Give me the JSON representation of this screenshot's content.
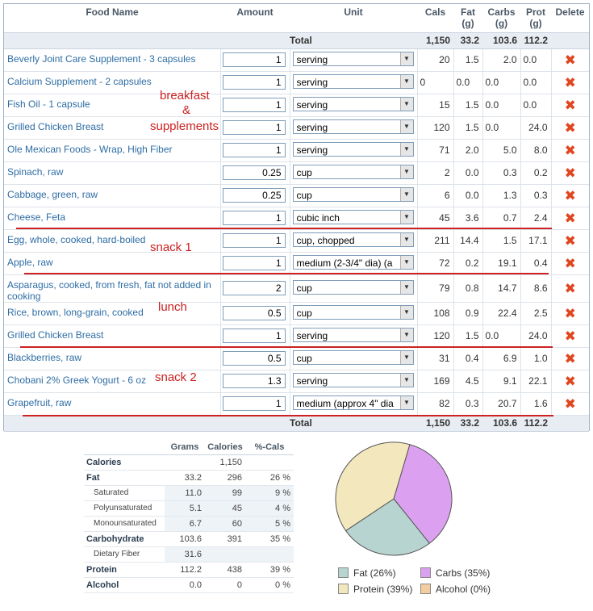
{
  "columns": [
    "Food Name",
    "Amount",
    "Unit",
    "Cals",
    "Fat (g)",
    "Carbs (g)",
    "Prot (g)",
    "Delete"
  ],
  "total": {
    "label": "Total",
    "cals": "1,150",
    "fat": "33.2",
    "carbs": "103.6",
    "prot": "112.2"
  },
  "foods": [
    {
      "name": "Beverly Joint Care Supplement - 3 capsules",
      "amount": "1",
      "unit": "serving",
      "cals": "20",
      "fat": "1.5",
      "carbs": "2.0",
      "prot": "0.0"
    },
    {
      "name": "Calcium Supplement - 2 capsules",
      "amount": "1",
      "unit": "serving",
      "cals": "0",
      "fat": "0.0",
      "carbs": "0.0",
      "prot": "0.0"
    },
    {
      "name": "Fish Oil - 1 capsule",
      "amount": "1",
      "unit": "serving",
      "cals": "15",
      "fat": "1.5",
      "carbs": "0.0",
      "prot": "0.0"
    },
    {
      "name": "Grilled Chicken Breast",
      "amount": "1",
      "unit": "serving",
      "cals": "120",
      "fat": "1.5",
      "carbs": "0.0",
      "prot": "24.0"
    },
    {
      "name": "Ole Mexican Foods - Wrap, High Fiber",
      "amount": "1",
      "unit": "serving",
      "cals": "71",
      "fat": "2.0",
      "carbs": "5.0",
      "prot": "8.0"
    },
    {
      "name": "Spinach, raw",
      "amount": "0.25",
      "unit": "cup",
      "cals": "2",
      "fat": "0.0",
      "carbs": "0.3",
      "prot": "0.2"
    },
    {
      "name": "Cabbage, green, raw",
      "amount": "0.25",
      "unit": "cup",
      "cals": "6",
      "fat": "0.0",
      "carbs": "1.3",
      "prot": "0.3"
    },
    {
      "name": "Cheese, Feta",
      "amount": "1",
      "unit": "cubic inch",
      "cals": "45",
      "fat": "3.6",
      "carbs": "0.7",
      "prot": "2.4"
    },
    {
      "name": "Egg, whole, cooked, hard-boiled",
      "amount": "1",
      "unit": "cup, chopped",
      "cals": "211",
      "fat": "14.4",
      "carbs": "1.5",
      "prot": "17.1"
    },
    {
      "name": "Apple, raw",
      "amount": "1",
      "unit": "medium (2-3/4\" dia) (a",
      "cals": "72",
      "fat": "0.2",
      "carbs": "19.1",
      "prot": "0.4"
    },
    {
      "name": "Asparagus, cooked, from fresh, fat not added in cooking",
      "amount": "2",
      "unit": "cup",
      "cals": "79",
      "fat": "0.8",
      "carbs": "14.7",
      "prot": "8.6"
    },
    {
      "name": "Rice, brown, long-grain, cooked",
      "amount": "0.5",
      "unit": "cup",
      "cals": "108",
      "fat": "0.9",
      "carbs": "22.4",
      "prot": "2.5"
    },
    {
      "name": "Grilled Chicken Breast",
      "amount": "1",
      "unit": "serving",
      "cals": "120",
      "fat": "1.5",
      "carbs": "0.0",
      "prot": "24.0"
    },
    {
      "name": "Blackberries, raw",
      "amount": "0.5",
      "unit": "cup",
      "cals": "31",
      "fat": "0.4",
      "carbs": "6.9",
      "prot": "1.0"
    },
    {
      "name": "Chobani 2% Greek Yogurt - 6 oz",
      "amount": "1.3",
      "unit": "serving",
      "cals": "169",
      "fat": "4.5",
      "carbs": "9.1",
      "prot": "22.1"
    },
    {
      "name": "Grapefruit, raw",
      "amount": "1",
      "unit": "medium (approx 4\" dia",
      "cals": "82",
      "fat": "0.3",
      "carbs": "20.7",
      "prot": "1.6"
    }
  ],
  "annotations": {
    "breakfast": "breakfast",
    "amp": "&",
    "supplements": "supplements",
    "snack1": "snack 1",
    "lunch": "lunch",
    "snack2": "snack 2"
  },
  "summary": {
    "headers": [
      "Grams",
      "Calories",
      "%-Cals"
    ],
    "rows": [
      {
        "label": "Calories",
        "grams": "",
        "cals": "1,150",
        "pct": ""
      },
      {
        "label": "Fat",
        "grams": "33.2",
        "cals": "296",
        "pct": "26 %"
      },
      {
        "label": "Saturated",
        "grams": "11.0",
        "cals": "99",
        "pct": "9 %"
      },
      {
        "label": "Polyunsaturated",
        "grams": "5.1",
        "cals": "45",
        "pct": "4 %"
      },
      {
        "label": "Monounsaturated",
        "grams": "6.7",
        "cals": "60",
        "pct": "5 %"
      },
      {
        "label": "Carbohydrate",
        "grams": "103.6",
        "cals": "391",
        "pct": "35 %"
      },
      {
        "label": "Dietary Fiber",
        "grams": "31.6",
        "cals": "",
        "pct": ""
      },
      {
        "label": "Protein",
        "grams": "112.2",
        "cals": "438",
        "pct": "39 %"
      },
      {
        "label": "Alcohol",
        "grams": "0.0",
        "cals": "0",
        "pct": "0 %"
      }
    ]
  },
  "chart_data": {
    "type": "pie",
    "categories": [
      "Fat",
      "Carbs",
      "Protein",
      "Alcohol"
    ],
    "values": [
      26,
      35,
      39,
      0
    ],
    "colors": [
      "#b8d4d0",
      "#dca0f0",
      "#f3e8bd",
      "#f3cda0"
    ],
    "legend": [
      "Fat  (26%)",
      "Carbs  (35%)",
      "Protein  (39%)",
      "Alcohol  (0%)"
    ]
  },
  "colors": {
    "link": "#2e6da4",
    "annotation": "#cc1f1f",
    "delete": "#e0461f",
    "total_bg": "#e8edf3"
  }
}
